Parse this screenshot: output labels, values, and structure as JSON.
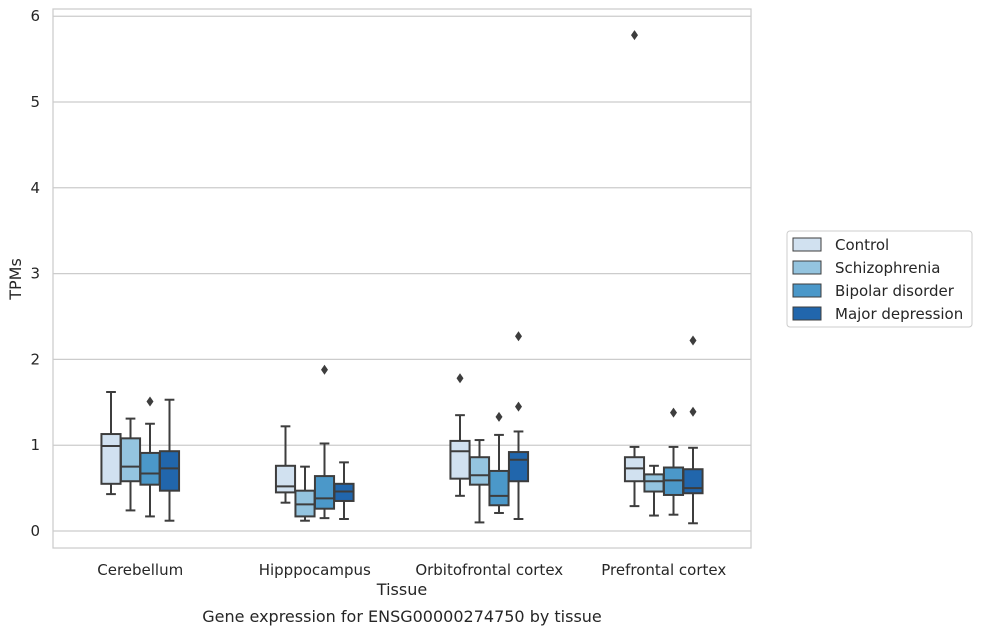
{
  "chart_data": {
    "type": "box",
    "title": "",
    "caption": "Gene expression for ENSG00000274750 by tissue",
    "xlabel": "Tissue",
    "ylabel": "TPMs",
    "ylim": [
      -0.18,
      6.08
    ],
    "yticks": [
      0,
      1,
      2,
      3,
      4,
      5,
      6
    ],
    "grid": "horizontal",
    "legend_position": "right",
    "categories": [
      "Cerebellum",
      "Hipppocampus",
      "Orbitofrontal cortex",
      "Prefrontal cortex"
    ],
    "series": [
      {
        "name": "Control",
        "color": "#d1e1f0",
        "boxes": [
          {
            "whislo": 0.43,
            "q1": 0.55,
            "med": 0.99,
            "q3": 1.13,
            "whishi": 1.62,
            "fliers": []
          },
          {
            "whislo": 0.33,
            "q1": 0.45,
            "med": 0.52,
            "q3": 0.76,
            "whishi": 1.22,
            "fliers": []
          },
          {
            "whislo": 0.41,
            "q1": 0.61,
            "med": 0.93,
            "q3": 1.05,
            "whishi": 1.35,
            "fliers": [
              1.78
            ]
          },
          {
            "whislo": 0.29,
            "q1": 0.58,
            "med": 0.73,
            "q3": 0.86,
            "whishi": 0.98,
            "fliers": [
              5.78
            ]
          }
        ]
      },
      {
        "name": "Schizophrenia",
        "color": "#94c4df",
        "boxes": [
          {
            "whislo": 0.24,
            "q1": 0.58,
            "med": 0.75,
            "q3": 1.08,
            "whishi": 1.31,
            "fliers": []
          },
          {
            "whislo": 0.12,
            "q1": 0.17,
            "med": 0.31,
            "q3": 0.47,
            "whishi": 0.75,
            "fliers": []
          },
          {
            "whislo": 0.1,
            "q1": 0.54,
            "med": 0.65,
            "q3": 0.86,
            "whishi": 1.06,
            "fliers": []
          },
          {
            "whislo": 0.18,
            "q1": 0.46,
            "med": 0.58,
            "q3": 0.66,
            "whishi": 0.76,
            "fliers": []
          }
        ]
      },
      {
        "name": "Bipolar disorder",
        "color": "#4b98c9",
        "boxes": [
          {
            "whislo": 0.17,
            "q1": 0.54,
            "med": 0.67,
            "q3": 0.91,
            "whishi": 1.25,
            "fliers": [
              1.51
            ]
          },
          {
            "whislo": 0.15,
            "q1": 0.26,
            "med": 0.38,
            "q3": 0.64,
            "whishi": 1.02,
            "fliers": [
              1.88
            ]
          },
          {
            "whislo": 0.21,
            "q1": 0.3,
            "med": 0.41,
            "q3": 0.7,
            "whishi": 1.12,
            "fliers": [
              1.33
            ]
          },
          {
            "whislo": 0.19,
            "q1": 0.42,
            "med": 0.59,
            "q3": 0.74,
            "whishi": 0.98,
            "fliers": [
              1.38
            ]
          }
        ]
      },
      {
        "name": "Major depression",
        "color": "#2166ac",
        "boxes": [
          {
            "whislo": 0.12,
            "q1": 0.47,
            "med": 0.73,
            "q3": 0.93,
            "whishi": 1.53,
            "fliers": []
          },
          {
            "whislo": 0.14,
            "q1": 0.35,
            "med": 0.46,
            "q3": 0.55,
            "whishi": 0.8,
            "fliers": []
          },
          {
            "whislo": 0.14,
            "q1": 0.58,
            "med": 0.83,
            "q3": 0.92,
            "whishi": 1.16,
            "fliers": [
              1.45,
              2.27
            ]
          },
          {
            "whislo": 0.09,
            "q1": 0.44,
            "med": 0.5,
            "q3": 0.72,
            "whishi": 0.97,
            "fliers": [
              1.39,
              2.22
            ]
          }
        ]
      }
    ]
  }
}
